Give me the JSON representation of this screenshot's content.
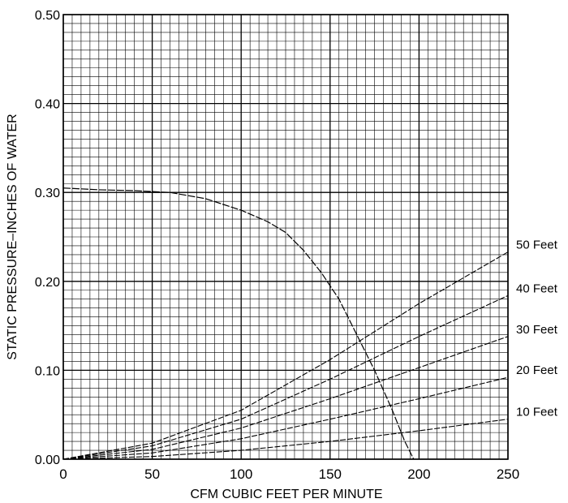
{
  "chart_data": {
    "type": "line",
    "title": "",
    "xlabel": "CFM CUBIC FEET PER MINUTE",
    "ylabel": "STATIC PRESSURE–INCHES OF WATER",
    "xlim": [
      0,
      250
    ],
    "ylim": [
      0,
      0.5
    ],
    "x_ticks": [
      0,
      50,
      100,
      150,
      200,
      250
    ],
    "x_tick_labels": [
      "0",
      "50",
      "100",
      "150",
      "200",
      "250"
    ],
    "y_ticks": [
      0,
      0.1,
      0.2,
      0.3,
      0.4,
      0.5
    ],
    "y_tick_labels": [
      "0.00",
      "0.10",
      "0.20",
      "0.30",
      "0.40",
      "0.50"
    ],
    "grid": true,
    "grid_minor_x": 5,
    "grid_minor_y": 0.01,
    "colors": {
      "line": "#000000",
      "grid": "#000000",
      "background": "#ffffff"
    },
    "fan_curve": {
      "name": "",
      "x": [
        0,
        20,
        40,
        60,
        80,
        100,
        115,
        125,
        135,
        145,
        155,
        165,
        175,
        185,
        192,
        197
      ],
      "y": [
        0.305,
        0.303,
        0.302,
        0.3,
        0.293,
        0.28,
        0.267,
        0.255,
        0.235,
        0.21,
        0.18,
        0.14,
        0.1,
        0.055,
        0.02,
        0
      ]
    },
    "series": [
      {
        "name": "10 Feet",
        "label": "10 Feet",
        "x": [
          0,
          50,
          100,
          150,
          200,
          250
        ],
        "y": [
          0,
          0.003,
          0.01,
          0.02,
          0.032,
          0.045
        ]
      },
      {
        "name": "20 Feet",
        "label": "20 Feet",
        "x": [
          0,
          50,
          100,
          150,
          200,
          250
        ],
        "y": [
          0,
          0.007,
          0.023,
          0.045,
          0.068,
          0.092
        ]
      },
      {
        "name": "30 Feet",
        "label": "30 Feet",
        "x": [
          0,
          50,
          100,
          150,
          200,
          250
        ],
        "y": [
          0,
          0.011,
          0.035,
          0.068,
          0.103,
          0.138
        ]
      },
      {
        "name": "40 Feet",
        "label": "40 Feet",
        "x": [
          0,
          50,
          100,
          150,
          200,
          250
        ],
        "y": [
          0,
          0.015,
          0.045,
          0.09,
          0.138,
          0.184
        ]
      },
      {
        "name": "50 Feet",
        "label": "50 Feet",
        "x": [
          0,
          50,
          100,
          150,
          200,
          250
        ],
        "y": [
          0,
          0.018,
          0.055,
          0.112,
          0.175,
          0.233
        ]
      }
    ]
  }
}
